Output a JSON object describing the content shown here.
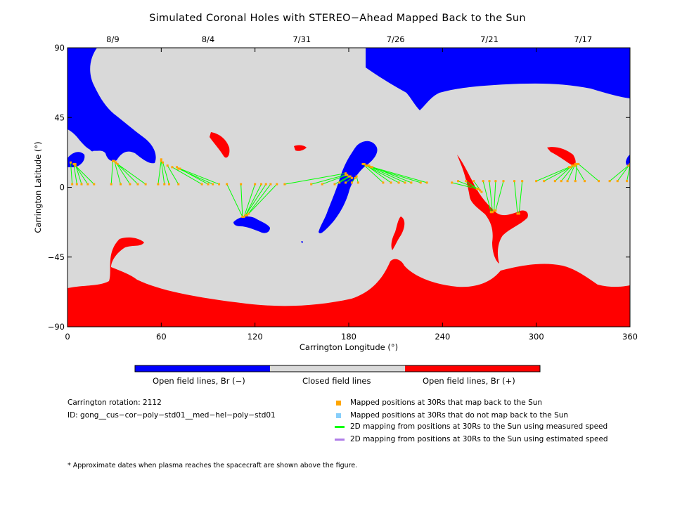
{
  "title": "Simulated Coronal Holes with STEREO−Ahead Mapped Back to the Sun",
  "chart_data": {
    "type": "map",
    "xlabel": "Carrington Longitude (°)",
    "ylabel": "Carrington Latitude (°)",
    "xlim": [
      0,
      360
    ],
    "ylim": [
      -90,
      90
    ],
    "x_ticks": [
      0,
      60,
      120,
      180,
      240,
      300,
      360
    ],
    "y_ticks": [
      -90,
      -45,
      0,
      45,
      90
    ],
    "top_axis_dates": [
      {
        "label": "8/9",
        "lon": 29
      },
      {
        "label": "8/4",
        "lon": 90
      },
      {
        "label": "7/31",
        "lon": 150
      },
      {
        "label": "7/26",
        "lon": 210
      },
      {
        "label": "7/21",
        "lon": 270
      },
      {
        "label": "7/17",
        "lon": 330
      }
    ],
    "colors": {
      "open_negative": "#0000ff",
      "closed": "#d9d9d9",
      "open_positive": "#ff0000",
      "mapped": "#ffa500",
      "unmapped": "#87cefa",
      "measured_speed": "#00ff00",
      "estimated_speed": "#b07de8"
    },
    "mapped_points": [
      {
        "lon": 3,
        "lat": 2,
        "flon": 2,
        "flat": 16
      },
      {
        "lon": 6,
        "lat": 2,
        "flon": 4,
        "flat": 15
      },
      {
        "lon": 9,
        "lat": 2,
        "flon": 5,
        "flat": 15
      },
      {
        "lon": 13,
        "lat": 2,
        "flon": 5,
        "flat": 14
      },
      {
        "lon": 17,
        "lat": 2,
        "flon": 5,
        "flat": 14
      },
      {
        "lon": 28,
        "lat": 2,
        "flon": 29,
        "flat": 17
      },
      {
        "lon": 34,
        "lat": 2,
        "flon": 30,
        "flat": 17
      },
      {
        "lon": 40,
        "lat": 2,
        "flon": 31,
        "flat": 16
      },
      {
        "lon": 45,
        "lat": 2,
        "flon": 31,
        "flat": 16
      },
      {
        "lon": 50,
        "lat": 2,
        "flon": 32,
        "flat": 15
      },
      {
        "lon": 58,
        "lat": 2,
        "flon": 60,
        "flat": 18
      },
      {
        "lon": 62,
        "lat": 2,
        "flon": 60,
        "flat": 17
      },
      {
        "lon": 65,
        "lat": 2,
        "flon": 61,
        "flat": 16
      },
      {
        "lon": 71,
        "lat": 2,
        "flon": 64,
        "flat": 14
      },
      {
        "lon": 86,
        "lat": 2,
        "flon": 67,
        "flat": 13
      },
      {
        "lon": 90,
        "lat": 2,
        "flon": 70,
        "flat": 13
      },
      {
        "lon": 93,
        "lat": 2,
        "flon": 71,
        "flat": 12
      },
      {
        "lon": 97,
        "lat": 2,
        "flon": 72,
        "flat": 12
      },
      {
        "lon": 102,
        "lat": 2,
        "flon": 112,
        "flat": -19
      },
      {
        "lon": 111,
        "lat": 2,
        "flon": 112,
        "flat": -19
      },
      {
        "lon": 120,
        "lat": 2,
        "flon": 113,
        "flat": -19
      },
      {
        "lon": 124,
        "lat": 2,
        "flon": 114,
        "flat": -18
      },
      {
        "lon": 127,
        "lat": 2,
        "flon": 114,
        "flat": -18
      },
      {
        "lon": 130,
        "lat": 2,
        "flon": 115,
        "flat": -18
      },
      {
        "lon": 134,
        "lat": 2,
        "flon": 116,
        "flat": -17
      },
      {
        "lon": 139,
        "lat": 2,
        "flon": 178,
        "flat": 9
      },
      {
        "lon": 156,
        "lat": 2,
        "flon": 178,
        "flat": 8
      },
      {
        "lon": 163,
        "lat": 2,
        "flon": 179,
        "flat": 8
      },
      {
        "lon": 171,
        "lat": 2,
        "flon": 180,
        "flat": 7
      },
      {
        "lon": 174,
        "lat": 3,
        "flon": 181,
        "flat": 7
      },
      {
        "lon": 178,
        "lat": 3,
        "flon": 182,
        "flat": 6
      },
      {
        "lon": 182,
        "lat": 3,
        "flon": 184,
        "flat": 6
      },
      {
        "lon": 186,
        "lat": 3,
        "flon": 185,
        "flat": 7
      },
      {
        "lon": 202,
        "lat": 3,
        "flon": 189,
        "flat": 15
      },
      {
        "lon": 207,
        "lat": 3,
        "flon": 190,
        "flat": 15
      },
      {
        "lon": 212,
        "lat": 3,
        "flon": 191,
        "flat": 14
      },
      {
        "lon": 216,
        "lat": 3,
        "flon": 192,
        "flat": 14
      },
      {
        "lon": 220,
        "lat": 3,
        "flon": 193,
        "flat": 14
      },
      {
        "lon": 226,
        "lat": 3,
        "flon": 194,
        "flat": 13
      },
      {
        "lon": 230,
        "lat": 3,
        "flon": 195,
        "flat": 13
      },
      {
        "lon": 246,
        "lat": 3,
        "flon": 262,
        "flat": -1
      },
      {
        "lon": 250,
        "lat": 4,
        "flon": 263,
        "flat": -1
      },
      {
        "lon": 255,
        "lat": 4,
        "flon": 264,
        "flat": -2
      },
      {
        "lon": 260,
        "lat": 4,
        "flon": 265,
        "flat": -3
      },
      {
        "lon": 266,
        "lat": 4,
        "flon": 271,
        "flat": -16
      },
      {
        "lon": 270,
        "lat": 4,
        "flon": 272,
        "flat": -16
      },
      {
        "lon": 274,
        "lat": 4,
        "flon": 273,
        "flat": -15
      },
      {
        "lon": 279,
        "lat": 4,
        "flon": 274,
        "flat": -15
      },
      {
        "lon": 286,
        "lat": 4,
        "flon": 288,
        "flat": -17
      },
      {
        "lon": 291,
        "lat": 4,
        "flon": 289,
        "flat": -17
      },
      {
        "lon": 300,
        "lat": 4,
        "flon": 321,
        "flat": 13
      },
      {
        "lon": 305,
        "lat": 4,
        "flon": 322,
        "flat": 13
      },
      {
        "lon": 312,
        "lat": 4,
        "flon": 323,
        "flat": 14
      },
      {
        "lon": 316,
        "lat": 4,
        "flon": 324,
        "flat": 14
      },
      {
        "lon": 320,
        "lat": 4,
        "flon": 325,
        "flat": 15
      },
      {
        "lon": 325,
        "lat": 4,
        "flon": 326,
        "flat": 15
      },
      {
        "lon": 331,
        "lat": 4,
        "flon": 325,
        "flat": 14
      },
      {
        "lon": 340,
        "lat": 4,
        "flon": 327,
        "flat": 15
      },
      {
        "lon": 347,
        "lat": 4,
        "flon": 359,
        "flat": 14
      },
      {
        "lon": 352,
        "lat": 4,
        "flon": 360,
        "flat": 15
      },
      {
        "lon": 358,
        "lat": 4,
        "flon": 360,
        "flat": 14
      }
    ]
  },
  "colorbar": {
    "labels": [
      "Open field lines, Br (−)",
      "Closed field lines",
      "Open field lines, Br (+)"
    ]
  },
  "info": {
    "rotation": "Carrington rotation: 2112",
    "id": "ID: gong__cus−cor−poly−std01__med−hel−poly−std01"
  },
  "legend": [
    "Mapped positions at 30Rs that map back to the Sun",
    "Mapped positions at 30Rs that do not map back to the Sun",
    "2D mapping from positions at 30Rs to the Sun using measured speed",
    "2D mapping from positions at 30Rs to the Sun using estimated speed"
  ],
  "footnote": "* Approximate dates when plasma reaches the spacecraft are shown above the figure."
}
